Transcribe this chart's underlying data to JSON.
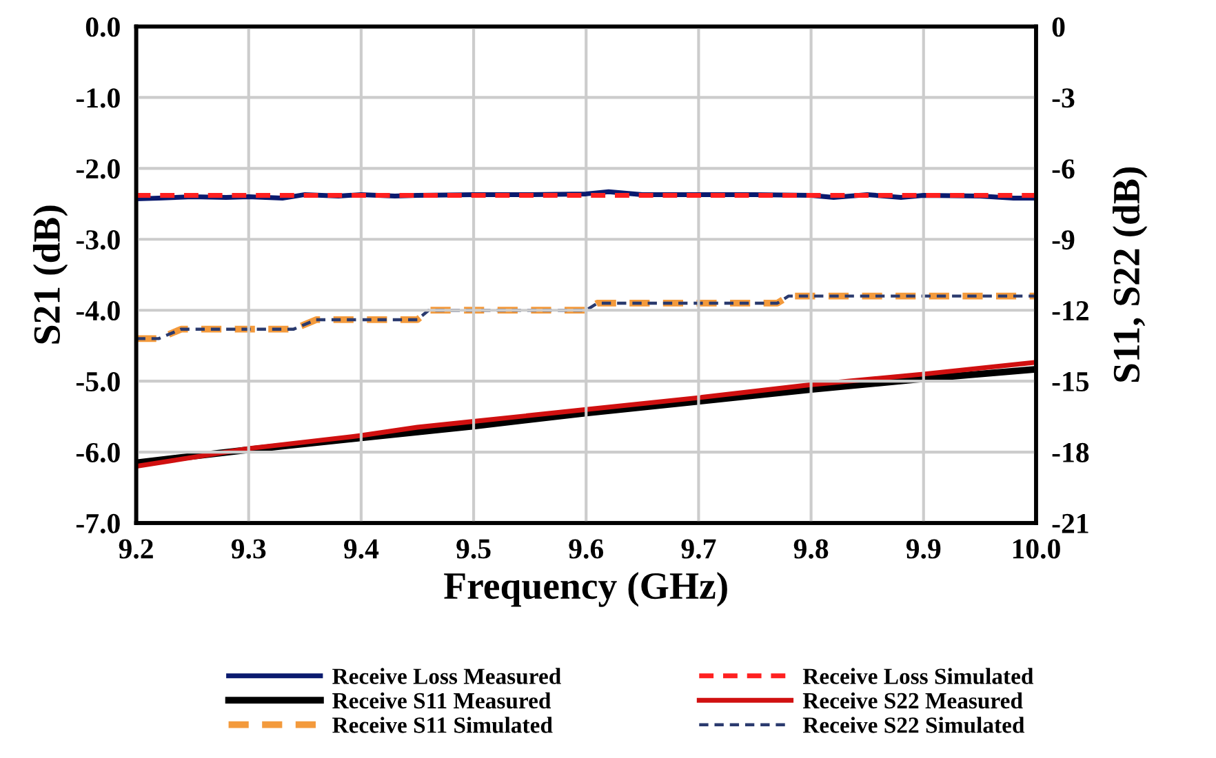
{
  "chart_data": {
    "type": "line",
    "xlabel": "Frequency (GHz)",
    "ylabel": "S21 (dB)",
    "y2label": "S11, S22 (dB)",
    "xlim": [
      9.2,
      10.0
    ],
    "xticks": [
      {
        "value": 9.2,
        "label": "9.2"
      },
      {
        "value": 9.3,
        "label": "9.3"
      },
      {
        "value": 9.4,
        "label": "9.4"
      },
      {
        "value": 9.5,
        "label": "9.5"
      },
      {
        "value": 9.6,
        "label": "9.6"
      },
      {
        "value": 9.7,
        "label": "9.7"
      },
      {
        "value": 9.8,
        "label": "9.8"
      },
      {
        "value": 9.9,
        "label": "9.9"
      },
      {
        "value": 10.0,
        "label": "10.0"
      }
    ],
    "ylim": [
      -7,
      0
    ],
    "yticks": [
      {
        "value": -7,
        "label": "-7.0"
      },
      {
        "value": -6,
        "label": "-6.0"
      },
      {
        "value": -5,
        "label": "-5.0"
      },
      {
        "value": -4,
        "label": "-4.0"
      },
      {
        "value": -3,
        "label": "-3.0"
      },
      {
        "value": -2,
        "label": "-2.0"
      },
      {
        "value": -1,
        "label": "-1.0"
      },
      {
        "value": 0,
        "label": "0.0"
      }
    ],
    "y2lim": [
      -21,
      0
    ],
    "y2ticks": [
      {
        "value": -21,
        "label": "-21"
      },
      {
        "value": -18,
        "label": "-18"
      },
      {
        "value": -15,
        "label": "-15"
      },
      {
        "value": -12,
        "label": "-12"
      },
      {
        "value": -9,
        "label": "-9"
      },
      {
        "value": -6,
        "label": "-6"
      },
      {
        "value": -3,
        "label": "-3"
      },
      {
        "value": 0,
        "label": "0"
      }
    ],
    "grid": true,
    "legend": "bottom",
    "marker": "none",
    "series": [
      {
        "name": "Receive Loss Measured",
        "color": "#0a1a6e",
        "line_style": "solid",
        "x": [
          9.2,
          9.22,
          9.25,
          9.28,
          9.3,
          9.33,
          9.35,
          9.38,
          9.4,
          9.43,
          9.45,
          9.5,
          9.55,
          9.6,
          9.62,
          9.65,
          9.7,
          9.75,
          9.8,
          9.82,
          9.85,
          9.88,
          9.9,
          9.95,
          9.98,
          10.0
        ],
        "values": [
          -2.43,
          -2.42,
          -2.4,
          -2.41,
          -2.4,
          -2.42,
          -2.37,
          -2.39,
          -2.37,
          -2.39,
          -2.38,
          -2.37,
          -2.37,
          -2.36,
          -2.33,
          -2.37,
          -2.37,
          -2.37,
          -2.38,
          -2.41,
          -2.37,
          -2.41,
          -2.38,
          -2.39,
          -2.42,
          -2.42
        ]
      },
      {
        "name": "Receive S11 Measured",
        "color": "#000000",
        "line_style": "solid",
        "axis": "y2",
        "x": [
          9.2,
          9.3,
          9.4,
          9.5,
          9.6,
          9.7,
          9.8,
          9.9,
          10.0
        ],
        "values": [
          -18.45,
          -17.9,
          -17.4,
          -16.9,
          -16.35,
          -15.85,
          -15.35,
          -14.9,
          -14.5
        ]
      },
      {
        "name": "Receive S11 Simulated",
        "color": "#f39a3c",
        "line_style": "dashed",
        "axis": "y2",
        "x": [
          9.2,
          9.22,
          9.24,
          9.34,
          9.36,
          9.45,
          9.46,
          9.6,
          9.61,
          9.77,
          9.78,
          10.0
        ],
        "values": [
          -13.2,
          -13.2,
          -12.8,
          -12.8,
          -12.4,
          -12.4,
          -12.0,
          -12.0,
          -11.7,
          -11.7,
          -11.4,
          -11.4
        ]
      },
      {
        "name": "Receive Loss Simulated",
        "color": "#ff2020",
        "line_style": "dashed",
        "x": [
          9.2,
          10.0
        ],
        "values": [
          -2.38,
          -2.38
        ]
      },
      {
        "name": "Receive S22 Measured",
        "color": "#d01010",
        "line_style": "solid",
        "axis": "y2",
        "x": [
          9.2,
          9.3,
          9.4,
          9.45,
          9.5,
          9.6,
          9.7,
          9.8,
          9.9,
          10.0
        ],
        "values": [
          -18.6,
          -17.85,
          -17.3,
          -16.95,
          -16.7,
          -16.2,
          -15.7,
          -15.15,
          -14.7,
          -14.2
        ]
      },
      {
        "name": "Receive S22 Simulated",
        "color": "#2a3a6e",
        "line_style": "dashed",
        "axis": "y2",
        "x": [
          9.2,
          9.22,
          9.24,
          9.34,
          9.36,
          9.45,
          9.46,
          9.6,
          9.61,
          9.77,
          9.78,
          10.0
        ],
        "values": [
          -13.2,
          -13.2,
          -12.8,
          -12.8,
          -12.4,
          -12.4,
          -12.0,
          -12.0,
          -11.7,
          -11.7,
          -11.4,
          -11.4
        ]
      }
    ]
  }
}
